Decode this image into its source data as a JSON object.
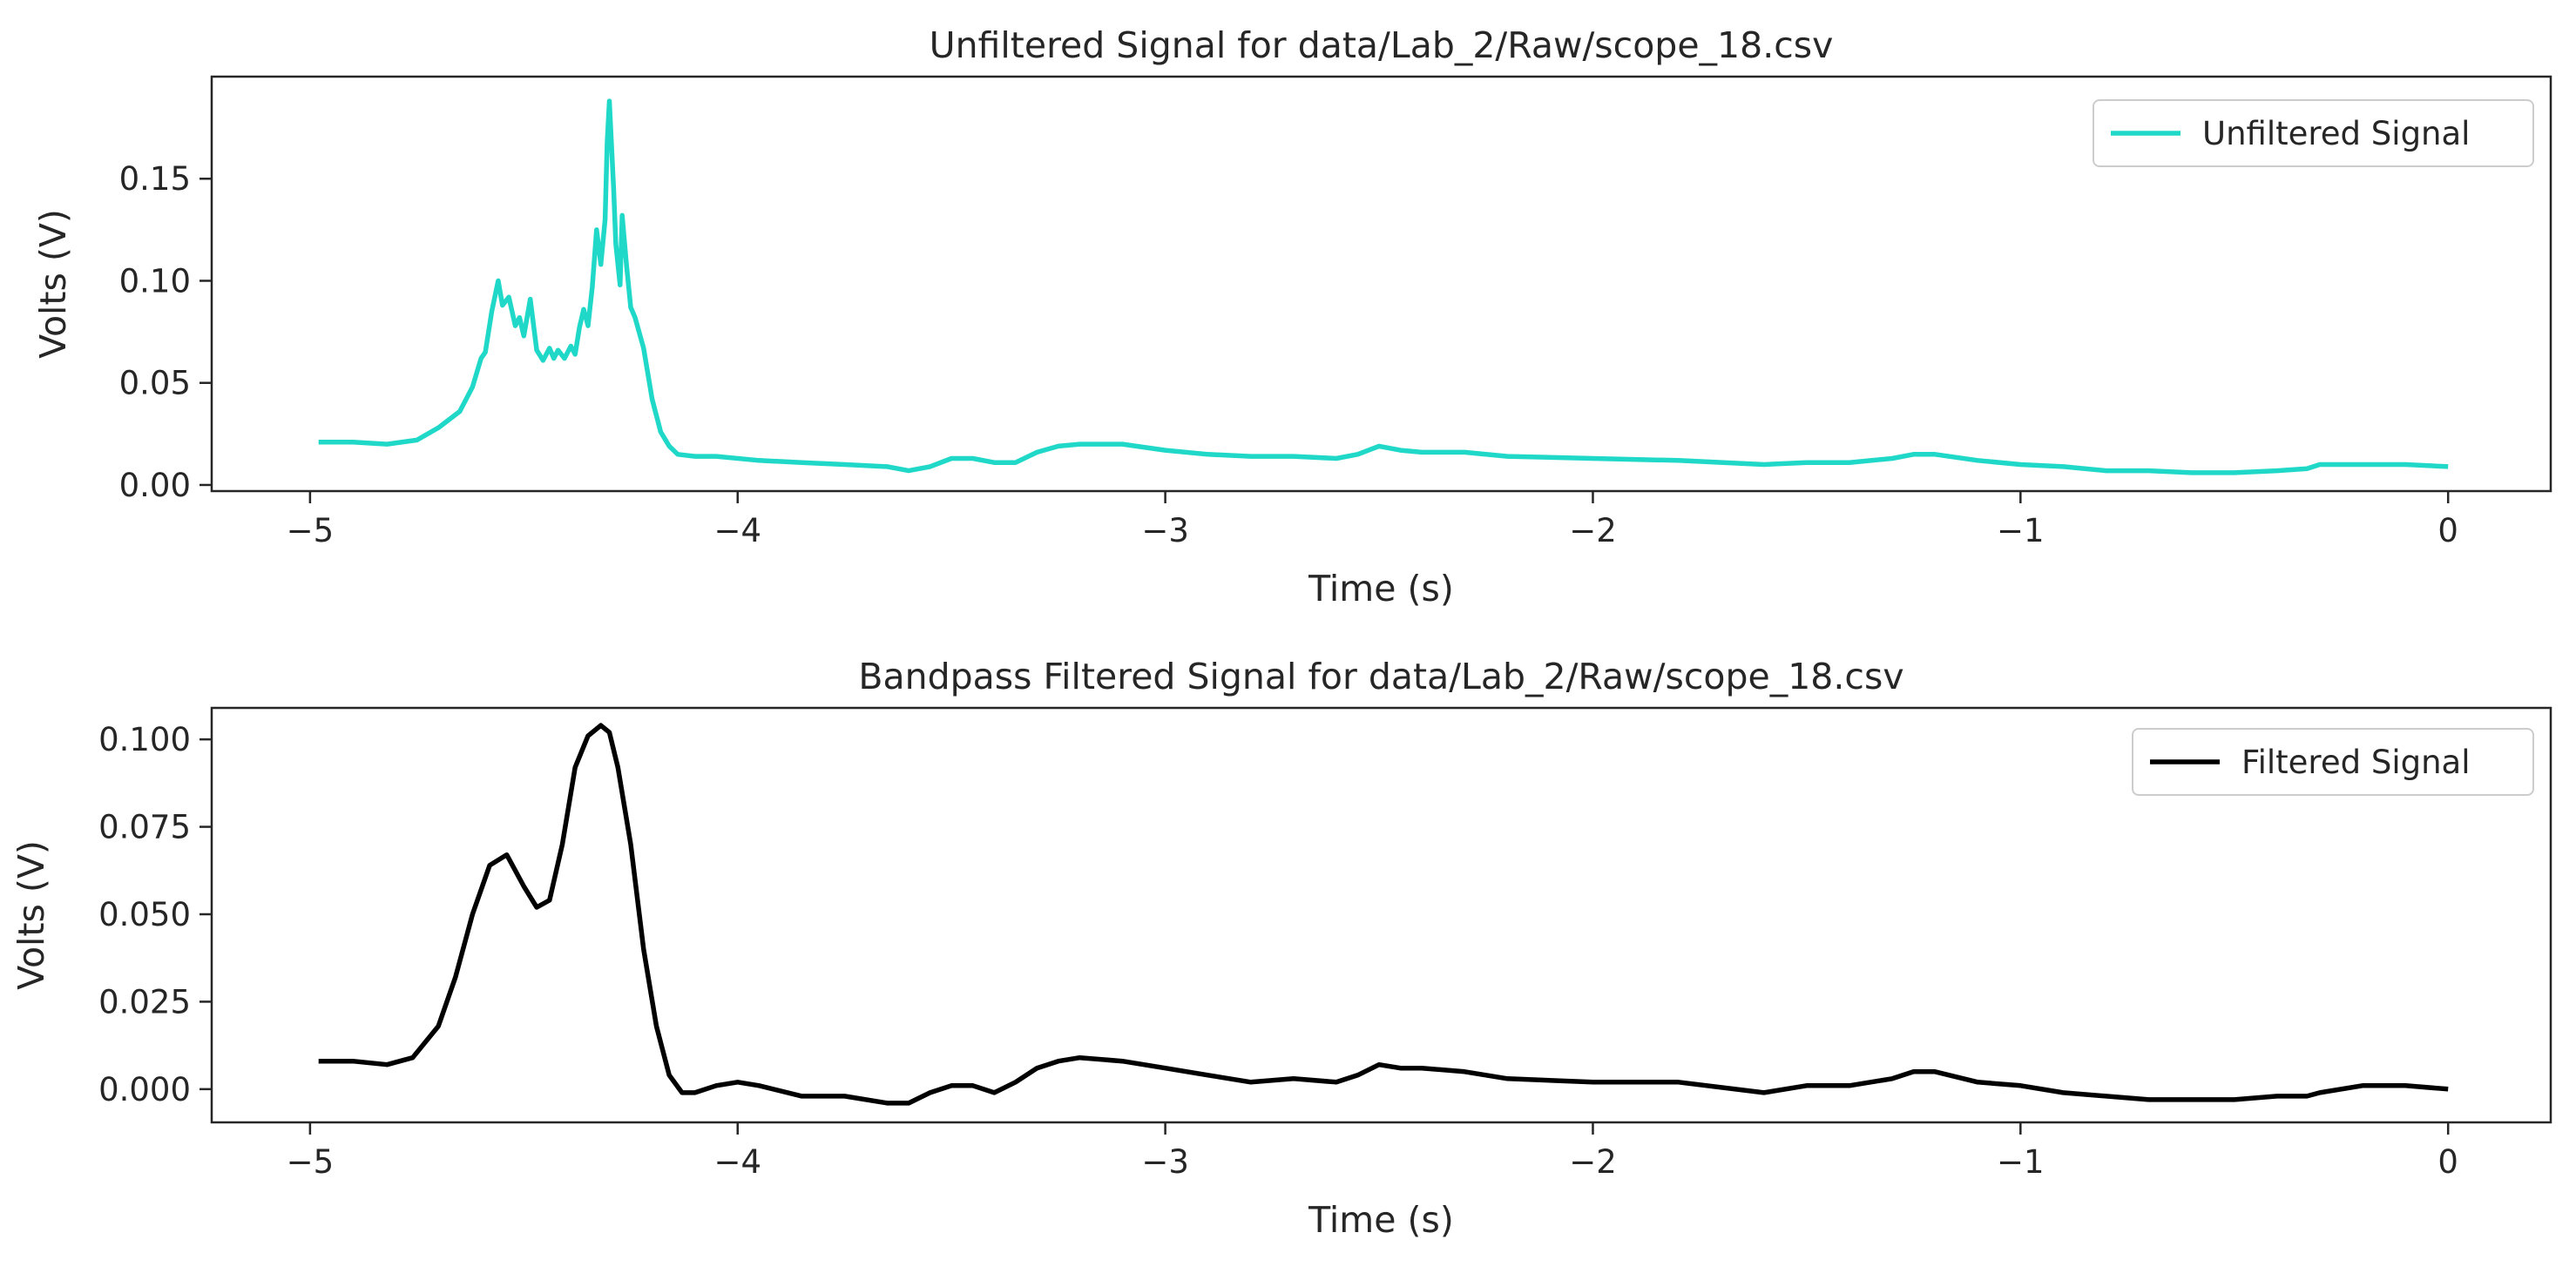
{
  "chart_data": [
    {
      "type": "line",
      "title": "Unfiltered Signal for data/Lab_2/Raw/scope_18.csv",
      "xlabel": "Time (s)",
      "ylabel": "Volts (V)",
      "xlim": [
        -5.23,
        0.24
      ],
      "ylim": [
        -0.003,
        0.2
      ],
      "xticks": [
        -5,
        -4,
        -3,
        -2,
        -1,
        0
      ],
      "xtick_labels": [
        "−5",
        "−4",
        "−3",
        "−2",
        "−1",
        "0"
      ],
      "yticks": [
        0.0,
        0.05,
        0.1,
        0.15
      ],
      "ytick_labels": [
        "0.00",
        "0.05",
        "0.10",
        "0.15"
      ],
      "grid": false,
      "legend": "upper right",
      "series": [
        {
          "name": "Unfiltered Signal",
          "color": "#1fd8c8",
          "x": [
            -4.98,
            -4.9,
            -4.82,
            -4.75,
            -4.7,
            -4.65,
            -4.62,
            -4.6,
            -4.59,
            -4.575,
            -4.56,
            -4.55,
            -4.535,
            -4.52,
            -4.51,
            -4.5,
            -4.485,
            -4.47,
            -4.455,
            -4.44,
            -4.43,
            -4.42,
            -4.405,
            -4.39,
            -4.38,
            -4.37,
            -4.36,
            -4.35,
            -4.34,
            -4.33,
            -4.32,
            -4.31,
            -4.305,
            -4.3,
            -4.29,
            -4.285,
            -4.275,
            -4.27,
            -4.26,
            -4.25,
            -4.24,
            -4.22,
            -4.2,
            -4.18,
            -4.16,
            -4.14,
            -4.1,
            -4.05,
            -3.95,
            -3.85,
            -3.75,
            -3.65,
            -3.6,
            -3.55,
            -3.5,
            -3.45,
            -3.4,
            -3.35,
            -3.3,
            -3.25,
            -3.2,
            -3.1,
            -3.0,
            -2.9,
            -2.8,
            -2.7,
            -2.6,
            -2.55,
            -2.5,
            -2.45,
            -2.4,
            -2.3,
            -2.2,
            -2.0,
            -1.8,
            -1.6,
            -1.5,
            -1.4,
            -1.3,
            -1.25,
            -1.2,
            -1.1,
            -1.0,
            -0.9,
            -0.8,
            -0.7,
            -0.6,
            -0.5,
            -0.4,
            -0.33,
            -0.3,
            -0.2,
            -0.1,
            0.0
          ],
          "y": [
            0.021,
            0.021,
            0.02,
            0.022,
            0.028,
            0.036,
            0.048,
            0.062,
            0.065,
            0.085,
            0.1,
            0.088,
            0.092,
            0.078,
            0.082,
            0.073,
            0.091,
            0.066,
            0.061,
            0.067,
            0.062,
            0.066,
            0.062,
            0.068,
            0.064,
            0.077,
            0.086,
            0.078,
            0.097,
            0.125,
            0.108,
            0.13,
            0.168,
            0.188,
            0.145,
            0.118,
            0.098,
            0.132,
            0.108,
            0.087,
            0.082,
            0.067,
            0.042,
            0.026,
            0.019,
            0.015,
            0.014,
            0.014,
            0.012,
            0.011,
            0.01,
            0.009,
            0.007,
            0.009,
            0.013,
            0.013,
            0.011,
            0.011,
            0.016,
            0.019,
            0.02,
            0.02,
            0.017,
            0.015,
            0.014,
            0.014,
            0.013,
            0.015,
            0.019,
            0.017,
            0.016,
            0.016,
            0.014,
            0.013,
            0.012,
            0.01,
            0.011,
            0.011,
            0.013,
            0.015,
            0.015,
            0.012,
            0.01,
            0.009,
            0.007,
            0.007,
            0.006,
            0.006,
            0.007,
            0.008,
            0.01,
            0.01,
            0.01,
            0.009
          ]
        }
      ]
    },
    {
      "type": "line",
      "title": "Bandpass Filtered Signal for data/Lab_2/Raw/scope_18.csv",
      "xlabel": "Time (s)",
      "ylabel": "Volts (V)",
      "xlim": [
        -5.23,
        0.24
      ],
      "ylim": [
        -0.0095,
        0.109
      ],
      "xticks": [
        -5,
        -4,
        -3,
        -2,
        -1,
        0
      ],
      "xtick_labels": [
        "−5",
        "−4",
        "−3",
        "−2",
        "−1",
        "0"
      ],
      "yticks": [
        0.0,
        0.025,
        0.05,
        0.075,
        0.1
      ],
      "ytick_labels": [
        "0.000",
        "0.025",
        "0.050",
        "0.075",
        "0.100"
      ],
      "grid": false,
      "legend": "upper right",
      "series": [
        {
          "name": "Filtered Signal",
          "color": "#000000",
          "x": [
            -4.98,
            -4.9,
            -4.82,
            -4.76,
            -4.7,
            -4.66,
            -4.62,
            -4.58,
            -4.54,
            -4.5,
            -4.47,
            -4.44,
            -4.41,
            -4.38,
            -4.35,
            -4.32,
            -4.3,
            -4.28,
            -4.25,
            -4.22,
            -4.19,
            -4.16,
            -4.13,
            -4.1,
            -4.05,
            -4.0,
            -3.95,
            -3.85,
            -3.75,
            -3.65,
            -3.6,
            -3.55,
            -3.5,
            -3.45,
            -3.4,
            -3.35,
            -3.3,
            -3.25,
            -3.2,
            -3.1,
            -3.0,
            -2.9,
            -2.8,
            -2.7,
            -2.6,
            -2.55,
            -2.5,
            -2.45,
            -2.4,
            -2.3,
            -2.2,
            -2.0,
            -1.8,
            -1.6,
            -1.5,
            -1.4,
            -1.3,
            -1.25,
            -1.2,
            -1.1,
            -1.0,
            -0.9,
            -0.8,
            -0.7,
            -0.6,
            -0.5,
            -0.4,
            -0.33,
            -0.3,
            -0.2,
            -0.1,
            0.0
          ],
          "y": [
            0.008,
            0.008,
            0.007,
            0.009,
            0.018,
            0.032,
            0.05,
            0.064,
            0.067,
            0.058,
            0.052,
            0.054,
            0.07,
            0.092,
            0.101,
            0.104,
            0.102,
            0.092,
            0.07,
            0.04,
            0.018,
            0.004,
            -0.001,
            -0.001,
            0.001,
            0.002,
            0.001,
            -0.002,
            -0.002,
            -0.004,
            -0.004,
            -0.001,
            0.001,
            0.001,
            -0.001,
            0.002,
            0.006,
            0.008,
            0.009,
            0.008,
            0.006,
            0.004,
            0.002,
            0.003,
            0.002,
            0.004,
            0.007,
            0.006,
            0.006,
            0.005,
            0.003,
            0.002,
            0.002,
            -0.001,
            0.001,
            0.001,
            0.003,
            0.005,
            0.005,
            0.002,
            0.001,
            -0.001,
            -0.002,
            -0.003,
            -0.003,
            -0.003,
            -0.002,
            -0.002,
            -0.001,
            0.001,
            0.001,
            0.0
          ]
        }
      ]
    }
  ]
}
